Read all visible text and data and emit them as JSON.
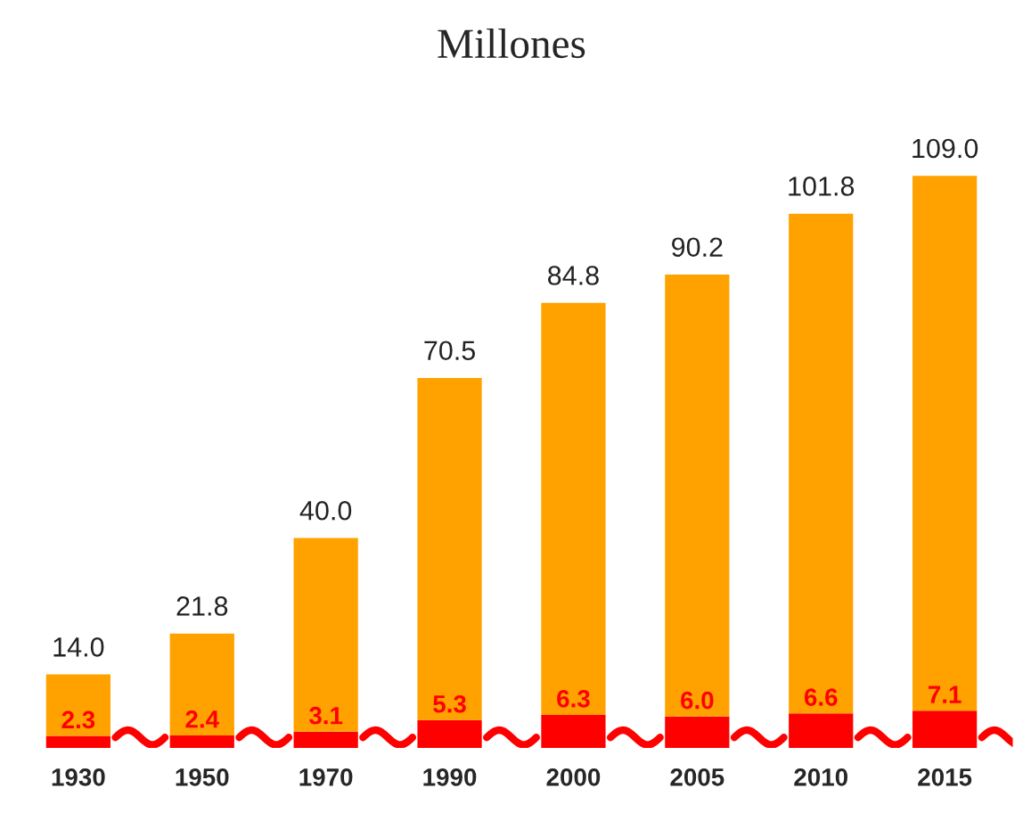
{
  "chart_data": {
    "type": "bar",
    "title": "Millones",
    "categories": [
      "1930",
      "1950",
      "1970",
      "1990",
      "2000",
      "2005",
      "2010",
      "2015"
    ],
    "stacked": true,
    "series": [
      {
        "color": "#ff0000",
        "values": [
          2.3,
          2.4,
          3.1,
          5.3,
          6.3,
          6.0,
          6.6,
          7.1
        ],
        "value_labels": [
          "2.3",
          "2.4",
          "3.1",
          "5.3",
          "6.3",
          "6.0",
          "6.6",
          "7.1"
        ]
      },
      {
        "color": "#ffa200",
        "values": [
          11.7,
          19.4,
          36.9,
          65.2,
          78.5,
          84.2,
          95.2,
          101.9
        ]
      }
    ],
    "totals": [
      "14.0",
      "21.8",
      "40.0",
      "70.5",
      "84.8",
      "90.2",
      "101.8",
      "109.0"
    ],
    "grid": false,
    "legend": false
  }
}
